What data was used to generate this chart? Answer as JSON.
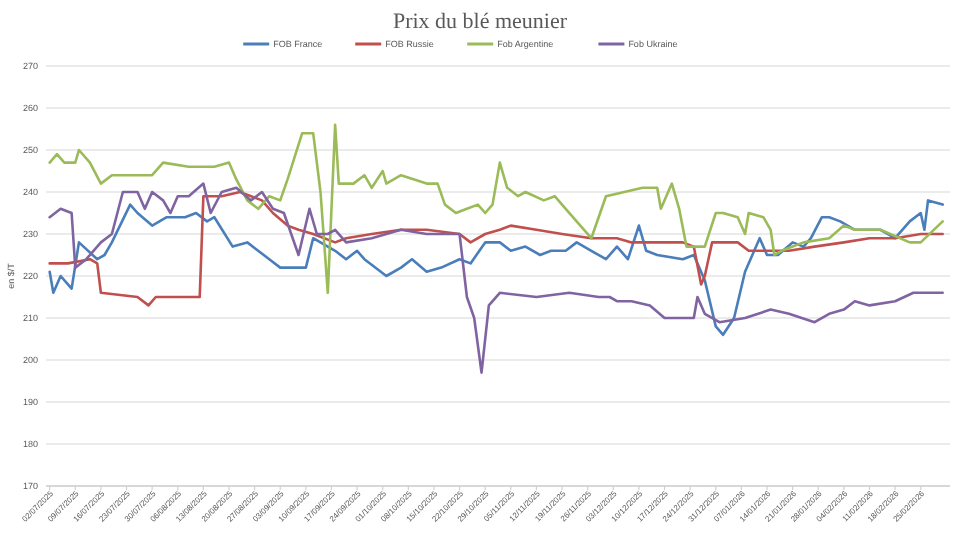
{
  "chart_data": {
    "type": "line",
    "title": "Prix du blé meunier",
    "ylabel": "en $/T",
    "legend": "top",
    "grid": "y",
    "line_style": "solid",
    "xlim": [
      "2025-07-01",
      "2026-03-05"
    ],
    "ylim": [
      170,
      270
    ],
    "yticks": [
      170,
      180,
      190,
      200,
      210,
      220,
      230,
      240,
      250,
      260,
      270
    ],
    "xticks": [
      {
        "value": "2025-07-02",
        "label": "02/07/2025"
      },
      {
        "value": "2025-07-09",
        "label": "09/07/2025"
      },
      {
        "value": "2025-07-16",
        "label": "16/07/2025"
      },
      {
        "value": "2025-07-23",
        "label": "23/07/2025"
      },
      {
        "value": "2025-07-30",
        "label": "30/07/2025"
      },
      {
        "value": "2025-08-06",
        "label": "06/08/2025"
      },
      {
        "value": "2025-08-13",
        "label": "13/08/2025"
      },
      {
        "value": "2025-08-20",
        "label": "20/08/2025"
      },
      {
        "value": "2025-08-27",
        "label": "27/08/2025"
      },
      {
        "value": "2025-09-03",
        "label": "03/09/2025"
      },
      {
        "value": "2025-09-10",
        "label": "10/09/2025"
      },
      {
        "value": "2025-09-17",
        "label": "17/09/2025"
      },
      {
        "value": "2025-09-24",
        "label": "24/09/2025"
      },
      {
        "value": "2025-10-01",
        "label": "01/10/2025"
      },
      {
        "value": "2025-10-08",
        "label": "08/10/2025"
      },
      {
        "value": "2025-10-15",
        "label": "15/10/2025"
      },
      {
        "value": "2025-10-22",
        "label": "22/10/2025"
      },
      {
        "value": "2025-10-29",
        "label": "29/10/2025"
      },
      {
        "value": "2025-11-05",
        "label": "05/11/2025"
      },
      {
        "value": "2025-11-12",
        "label": "12/11/2025"
      },
      {
        "value": "2025-11-19",
        "label": "19/11/2025"
      },
      {
        "value": "2025-11-26",
        "label": "26/11/2025"
      },
      {
        "value": "2025-12-03",
        "label": "03/12/2025"
      },
      {
        "value": "2025-12-10",
        "label": "10/12/2025"
      },
      {
        "value": "2025-12-17",
        "label": "17/12/2025"
      },
      {
        "value": "2025-12-24",
        "label": "24/12/2025"
      },
      {
        "value": "2025-12-31",
        "label": "31/12/2025"
      },
      {
        "value": "2026-01-07",
        "label": "07/01/2026"
      },
      {
        "value": "2026-01-14",
        "label": "14/01/2026"
      },
      {
        "value": "2026-01-21",
        "label": "21/01/2026"
      },
      {
        "value": "2026-01-28",
        "label": "28/01/2026"
      },
      {
        "value": "2026-02-04",
        "label": "04/02/2026"
      },
      {
        "value": "2026-02-11",
        "label": "11/02/2026"
      },
      {
        "value": "2026-02-18",
        "label": "18/02/2026"
      },
      {
        "value": "2026-02-25",
        "label": "25/02/2026"
      }
    ],
    "series": [
      {
        "name": "FOB France",
        "color": "#4a7ebb",
        "x": [
          "2025-07-02",
          "2025-07-03",
          "2025-07-05",
          "2025-07-07",
          "2025-07-08",
          "2025-07-10",
          "2025-07-15",
          "2025-07-17",
          "2025-07-19",
          "2025-07-24",
          "2025-07-26",
          "2025-07-30",
          "2025-08-03",
          "2025-08-08",
          "2025-08-11",
          "2025-08-14",
          "2025-08-16",
          "2025-08-21",
          "2025-08-25",
          "2025-08-31",
          "2025-09-03",
          "2025-09-10",
          "2025-09-12",
          "2025-09-18",
          "2025-09-21",
          "2025-09-24",
          "2025-09-26",
          "2025-10-02",
          "2025-10-06",
          "2025-10-09",
          "2025-10-13",
          "2025-10-17",
          "2025-10-22",
          "2025-10-25",
          "2025-10-29",
          "2025-11-02",
          "2025-11-05",
          "2025-11-09",
          "2025-11-13",
          "2025-11-16",
          "2025-11-20",
          "2025-11-23",
          "2025-11-27",
          "2025-12-01",
          "2025-12-04",
          "2025-12-07",
          "2025-12-10",
          "2025-12-12",
          "2025-12-15",
          "2025-12-22",
          "2025-12-25",
          "2025-12-28",
          "2025-12-31",
          "2026-01-02",
          "2026-01-05",
          "2026-01-08",
          "2026-01-10",
          "2026-01-12",
          "2026-01-14",
          "2026-01-17",
          "2026-01-21",
          "2026-01-24",
          "2026-01-26",
          "2026-01-29",
          "2026-01-31",
          "2026-02-03",
          "2026-02-07",
          "2026-02-14",
          "2026-02-18",
          "2026-02-22",
          "2026-02-25",
          "2026-02-26",
          "2026-02-27",
          "2026-03-03"
        ],
        "values": [
          221,
          216,
          220,
          218,
          217,
          228,
          224,
          225,
          228,
          237,
          235,
          232,
          234,
          234,
          235,
          233,
          234,
          227,
          228,
          224,
          222,
          222,
          229,
          226,
          224,
          226,
          224,
          220,
          222,
          224,
          221,
          222,
          224,
          223,
          228,
          228,
          226,
          227,
          225,
          226,
          226,
          228,
          226,
          224,
          227,
          224,
          232,
          226,
          225,
          224,
          225,
          219,
          208,
          206,
          210,
          221,
          225,
          229,
          225,
          225,
          228,
          227,
          229,
          234,
          234,
          233,
          231,
          231,
          229,
          233,
          235,
          231,
          238,
          237
        ]
      },
      {
        "name": "FOB Russie",
        "color": "#c0504d",
        "x": [
          "2025-07-02",
          "2025-07-07",
          "2025-07-13",
          "2025-07-15",
          "2025-07-16",
          "2025-07-26",
          "2025-07-29",
          "2025-07-31",
          "2025-08-07",
          "2025-08-12",
          "2025-08-13",
          "2025-08-18",
          "2025-08-23",
          "2025-08-29",
          "2025-09-01",
          "2025-09-05",
          "2025-09-08",
          "2025-09-12",
          "2025-09-18",
          "2025-09-21",
          "2025-09-28",
          "2025-10-06",
          "2025-10-13",
          "2025-10-22",
          "2025-10-25",
          "2025-10-29",
          "2025-11-02",
          "2025-11-05",
          "2025-11-12",
          "2025-11-19",
          "2025-11-27",
          "2025-12-04",
          "2025-12-08",
          "2025-12-15",
          "2025-12-22",
          "2025-12-25",
          "2025-12-27",
          "2025-12-28",
          "2025-12-30",
          "2026-01-06",
          "2026-01-09",
          "2026-01-15",
          "2026-01-20",
          "2026-01-27",
          "2026-02-04",
          "2026-02-11",
          "2026-02-18",
          "2026-02-25",
          "2026-03-03"
        ],
        "values": [
          223,
          223,
          224,
          223,
          216,
          215,
          213,
          215,
          215,
          215,
          239,
          239,
          240,
          238,
          235,
          232,
          231,
          230,
          228,
          229,
          230,
          231,
          231,
          230,
          228,
          230,
          231,
          232,
          231,
          230,
          229,
          229,
          228,
          228,
          228,
          227,
          218,
          220,
          228,
          228,
          226,
          226,
          226,
          227,
          228,
          229,
          229,
          230,
          230
        ]
      },
      {
        "name": "Fob Argentine",
        "color": "#9bbb59",
        "x": [
          "2025-07-02",
          "2025-07-04",
          "2025-07-06",
          "2025-07-09",
          "2025-07-10",
          "2025-07-13",
          "2025-07-16",
          "2025-07-19",
          "2025-07-26",
          "2025-07-30",
          "2025-08-02",
          "2025-08-09",
          "2025-08-13",
          "2025-08-16",
          "2025-08-20",
          "2025-08-22",
          "2025-08-25",
          "2025-08-28",
          "2025-08-31",
          "2025-09-03",
          "2025-09-05",
          "2025-09-09",
          "2025-09-12",
          "2025-09-14",
          "2025-09-16",
          "2025-09-18",
          "2025-09-19",
          "2025-09-23",
          "2025-09-26",
          "2025-09-28",
          "2025-10-01",
          "2025-10-02",
          "2025-10-06",
          "2025-10-13",
          "2025-10-16",
          "2025-10-18",
          "2025-10-21",
          "2025-10-24",
          "2025-10-27",
          "2025-10-29",
          "2025-10-31",
          "2025-11-02",
          "2025-11-04",
          "2025-11-07",
          "2025-11-09",
          "2025-11-14",
          "2025-11-17",
          "2025-11-20",
          "2025-11-24",
          "2025-11-27",
          "2025-12-01",
          "2025-12-06",
          "2025-12-11",
          "2025-12-15",
          "2025-12-16",
          "2025-12-19",
          "2025-12-21",
          "2025-12-23",
          "2025-12-28",
          "2025-12-31",
          "2026-01-02",
          "2026-01-06",
          "2026-01-08",
          "2026-01-09",
          "2026-01-13",
          "2026-01-15",
          "2026-01-16",
          "2026-01-18",
          "2026-01-24",
          "2026-01-31",
          "2026-02-04",
          "2026-02-07",
          "2026-02-14",
          "2026-02-22",
          "2026-02-25",
          "2026-03-03"
        ],
        "values": [
          247,
          249,
          247,
          247,
          250,
          247,
          242,
          244,
          244,
          244,
          247,
          246,
          246,
          246,
          247,
          243,
          238,
          236,
          239,
          238,
          243,
          254,
          254,
          240,
          216,
          256,
          242,
          242,
          244,
          241,
          245,
          242,
          244,
          242,
          242,
          237,
          235,
          236,
          237,
          235,
          237,
          247,
          241,
          239,
          240,
          238,
          239,
          236,
          232,
          229,
          239,
          240,
          241,
          241,
          236,
          242,
          236,
          227,
          227,
          235,
          235,
          234,
          230,
          235,
          234,
          231,
          225,
          226,
          228,
          229,
          232,
          231,
          231,
          228,
          228,
          233
        ]
      },
      {
        "name": "Fob Ukraine",
        "color": "#8064a2",
        "x": [
          "2025-07-02",
          "2025-07-05",
          "2025-07-08",
          "2025-07-09",
          "2025-07-12",
          "2025-07-16",
          "2025-07-19",
          "2025-07-22",
          "2025-07-26",
          "2025-07-28",
          "2025-07-30",
          "2025-08-02",
          "2025-08-04",
          "2025-08-06",
          "2025-08-09",
          "2025-08-13",
          "2025-08-15",
          "2025-08-18",
          "2025-08-22",
          "2025-08-26",
          "2025-08-29",
          "2025-09-01",
          "2025-09-04",
          "2025-09-08",
          "2025-09-11",
          "2025-09-13",
          "2025-09-16",
          "2025-09-18",
          "2025-09-21",
          "2025-09-28",
          "2025-10-06",
          "2025-10-13",
          "2025-10-22",
          "2025-10-24",
          "2025-10-26",
          "2025-10-28",
          "2025-10-30",
          "2025-11-02",
          "2025-11-12",
          "2025-11-21",
          "2025-11-29",
          "2025-12-02",
          "2025-12-04",
          "2025-12-08",
          "2025-12-13",
          "2025-12-17",
          "2025-12-22",
          "2025-12-25",
          "2025-12-26",
          "2025-12-28",
          "2026-01-01",
          "2026-01-08",
          "2026-01-15",
          "2026-01-20",
          "2026-01-27",
          "2026-01-31",
          "2026-02-04",
          "2026-02-07",
          "2026-02-11",
          "2026-02-18",
          "2026-02-23",
          "2026-03-03"
        ],
        "values": [
          234,
          236,
          235,
          222,
          224,
          228,
          230,
          240,
          240,
          236,
          240,
          238,
          235,
          239,
          239,
          242,
          235,
          240,
          241,
          238,
          240,
          236,
          235,
          225,
          236,
          230,
          230,
          231,
          228,
          229,
          231,
          230,
          230,
          215,
          210,
          197,
          213,
          216,
          215,
          216,
          215,
          215,
          214,
          214,
          213,
          210,
          210,
          210,
          215,
          211,
          209,
          210,
          212,
          211,
          209,
          211,
          212,
          214,
          213,
          214,
          216,
          216
        ]
      }
    ]
  }
}
